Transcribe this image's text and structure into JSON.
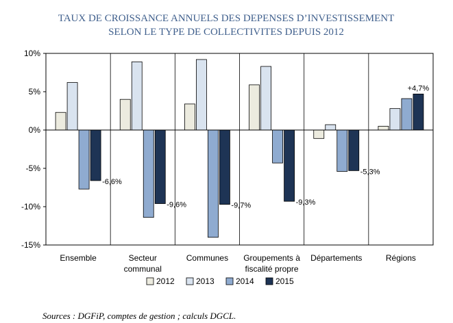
{
  "chart_data": {
    "type": "bar",
    "title": [
      "TAUX DE CROISSANCE ANNUELS DES DEPENSES D’INVESTISSEMENT",
      "SELON LE TYPE DE COLLECTIVITES DEPUIS 2012"
    ],
    "categories": [
      [
        "Ensemble"
      ],
      [
        "Secteur",
        "communal"
      ],
      [
        "Communes"
      ],
      [
        "Groupements à",
        "fiscalité propre"
      ],
      [
        "Départements"
      ],
      [
        "Régions"
      ]
    ],
    "series": [
      {
        "name": "2012",
        "color": "#ecebdf",
        "values": [
          2.3,
          4.0,
          3.4,
          5.9,
          -1.1,
          0.5
        ]
      },
      {
        "name": "2013",
        "color": "#d9e3ef",
        "values": [
          6.2,
          8.9,
          9.2,
          8.3,
          0.7,
          2.8
        ]
      },
      {
        "name": "2014",
        "color": "#8fabd0",
        "values": [
          -7.7,
          -11.4,
          -14.0,
          -4.3,
          -5.4,
          4.1
        ]
      },
      {
        "name": "2015",
        "color": "#1e3455",
        "values": [
          -6.6,
          -9.6,
          -9.7,
          -9.3,
          -5.3,
          4.7
        ]
      }
    ],
    "data_labels": [
      {
        "category": 0,
        "series": 3,
        "text": "-6,6%"
      },
      {
        "category": 1,
        "series": 3,
        "text": "-9,6%"
      },
      {
        "category": 2,
        "series": 3,
        "text": "-9,7%"
      },
      {
        "category": 3,
        "series": 3,
        "text": "-9,3%"
      },
      {
        "category": 4,
        "series": 3,
        "text": "-5,3%"
      },
      {
        "category": 5,
        "series": 3,
        "text": "+4,7%"
      }
    ],
    "ylim": [
      -15,
      10
    ],
    "yticks": [
      10,
      5,
      0,
      -5,
      -10,
      -15
    ],
    "ytick_labels": [
      "10%",
      "5%",
      "0%",
      "-5%",
      "-10%",
      "-15%"
    ],
    "xlabel": "",
    "ylabel": "",
    "grid": false,
    "legend_position": "bottom",
    "source": "Sources : DGFiP, comptes de gestion ; calculs DGCL."
  }
}
